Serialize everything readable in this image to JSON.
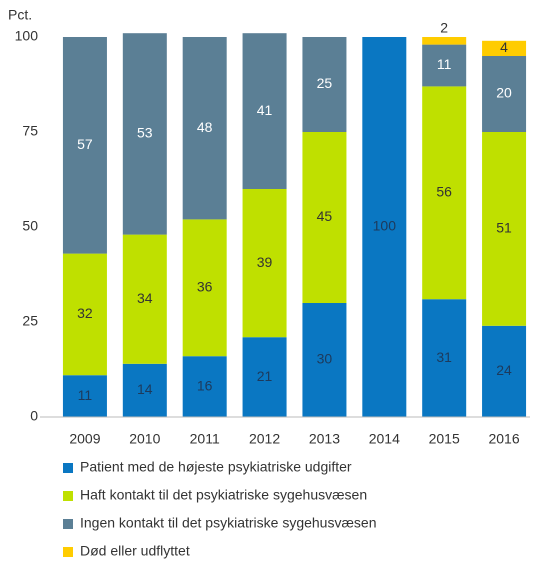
{
  "chart_data": {
    "type": "stacked_bar",
    "y_label": "Pct.",
    "categories": [
      "2009",
      "2010",
      "2011",
      "2012",
      "2013",
      "2014",
      "2015",
      "2016"
    ],
    "series": [
      {
        "name": "Patient med de højeste psykiatriske udgifter",
        "color": "#0a77c2",
        "label_color": "#1d3a5c",
        "values": [
          11,
          14,
          16,
          21,
          30,
          100,
          31,
          24
        ]
      },
      {
        "name": "Haft kontakt til det psykiatriske sygehusvæsen",
        "color": "#bfe000",
        "label_color": "#333333",
        "values": [
          32,
          34,
          36,
          39,
          45,
          null,
          56,
          51
        ]
      },
      {
        "name": "Ingen kontakt til det psykiatriske sygehusvæsen",
        "color": "#5b7f95",
        "label_color": "#ffffff",
        "values": [
          57,
          53,
          48,
          41,
          25,
          null,
          11,
          20
        ]
      },
      {
        "name": "Død eller udflyttet",
        "color": "#ffcc00",
        "label_color": "#333333",
        "values": [
          null,
          null,
          null,
          null,
          null,
          null,
          2,
          4
        ]
      }
    ],
    "ylim": [
      0,
      100
    ],
    "yticks": [
      0,
      25,
      50,
      75,
      100
    ],
    "grid": false
  }
}
